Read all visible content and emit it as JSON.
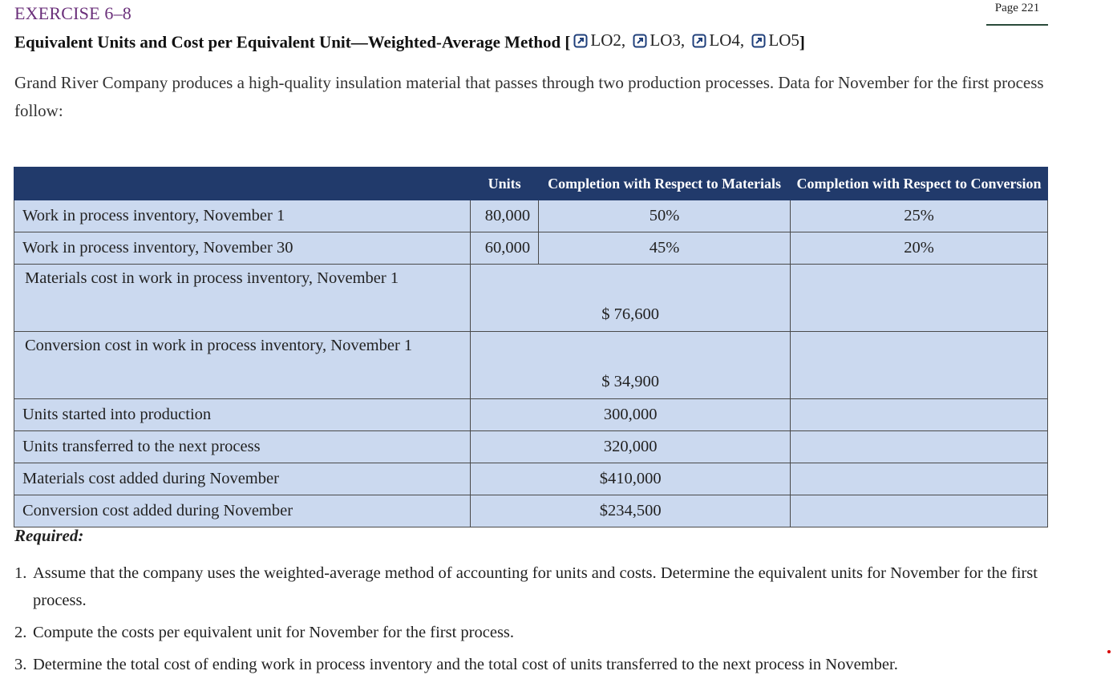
{
  "page_label": "Page 221",
  "exercise": {
    "title": "EXERCISE 6–8",
    "subtitle_text": "Equivalent Units and Cost per Equivalent Unit—Weighted-Average Method [",
    "links": [
      "LO2,",
      "LO3,",
      "LO4,",
      "LO5"
    ],
    "subtitle_end": "]"
  },
  "intro": "Grand River Company produces a high-quality insulation material that passes through two production processes. Data for November for the first process follow:",
  "table": {
    "headers": [
      "",
      "Units",
      "Completion with Respect to Materials",
      "Completion with Respect to Conversion"
    ],
    "rows": [
      {
        "label": "Work in process inventory, November 1",
        "units": "80,000",
        "materials": "50%",
        "conversion": "25%"
      },
      {
        "label": "Work in process inventory, November 30",
        "units": "60,000",
        "materials": "45%",
        "conversion": "20%"
      },
      {
        "label": "Materials cost in work in process inventory, November 1",
        "amount": "$ 76,600"
      },
      {
        "label": "Conversion cost in work in process inventory, November 1",
        "amount": "$ 34,900"
      },
      {
        "label": "Units started into production",
        "amount": "300,000"
      },
      {
        "label": "Units transferred to the next process",
        "amount": "320,000"
      },
      {
        "label": "Materials cost added during November",
        "amount": "$410,000"
      },
      {
        "label": "Conversion cost added during November",
        "amount": "$234,500"
      }
    ]
  },
  "required": {
    "heading": "Required:",
    "items": [
      {
        "num": "1.",
        "text": "Assume that the company uses the weighted-average method of accounting for units and costs. Determine the equivalent units for November for the first process."
      },
      {
        "num": "2.",
        "text": "Compute the costs per equivalent unit for November for the first process."
      },
      {
        "num": "3.",
        "text": "Determine the total cost of ending work in process inventory and the total cost of units transferred to the next process in November."
      }
    ]
  }
}
